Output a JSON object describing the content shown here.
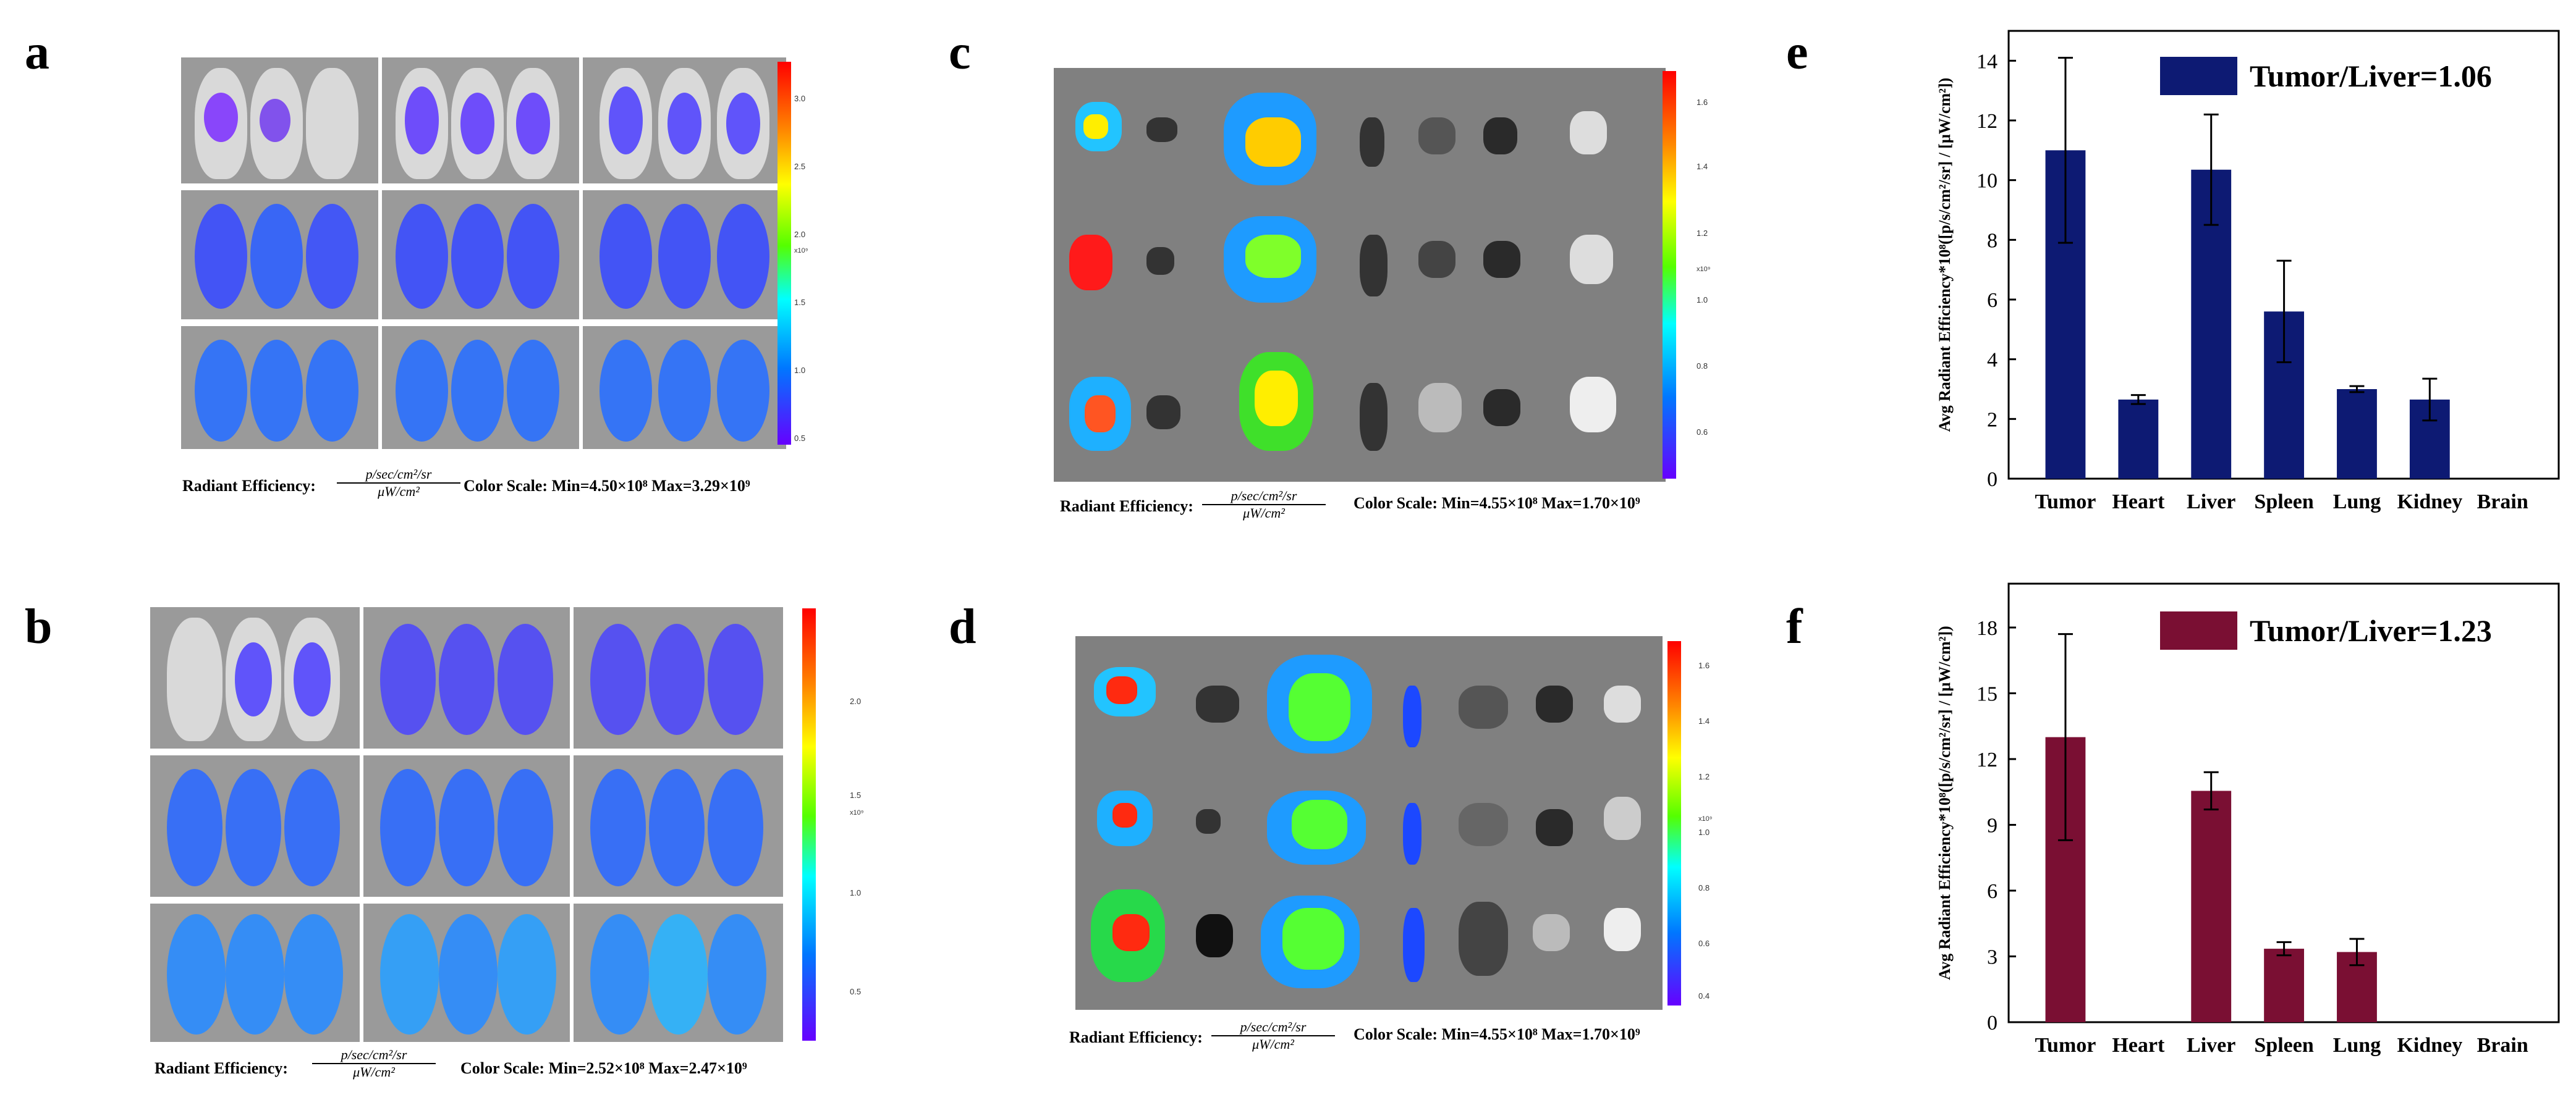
{
  "panel_letters": {
    "a": "a",
    "b": "b",
    "c": "c",
    "d": "d",
    "e": "e",
    "f": "f"
  },
  "panel_a": {
    "colorbar_ticks": [
      "3.0",
      "2.5",
      "2.0",
      "1.5",
      "1.0",
      "0.5"
    ],
    "colorbar_unit": "x10⁹",
    "caption_label": "Radiant Efficiency:",
    "unit_num": "p/sec/cm²/sr",
    "unit_den": "μW/cm²",
    "color_scale": "Color Scale:  Min=4.50×10⁸  Max=3.29×10⁹"
  },
  "panel_b": {
    "colorbar_ticks": [
      "2.0",
      "1.5",
      "1.0",
      "0.5"
    ],
    "colorbar_unit": "x10⁹",
    "caption_label": "Radiant Efficiency:",
    "unit_num": "p/sec/cm²/sr",
    "unit_den": "μW/cm²",
    "color_scale": "Color Scale:  Min=2.52×10⁸  Max=2.47×10⁹"
  },
  "panel_c": {
    "colorbar_ticks": [
      "1.6",
      "1.4",
      "1.2",
      "1.0",
      "0.8",
      "0.6"
    ],
    "colorbar_unit": "x10⁹",
    "caption_label": "Radiant Efficiency:",
    "unit_num": "p/sec/cm²/sr",
    "unit_den": "μW/cm²",
    "color_scale": "Color Scale:  Min=4.55×10⁸  Max=1.70×10⁹"
  },
  "panel_d": {
    "colorbar_ticks": [
      "1.6",
      "1.4",
      "1.2",
      "1.0",
      "0.8",
      "0.6",
      "0.4"
    ],
    "colorbar_unit": "x10⁹",
    "caption_label": "Radiant Efficiency:",
    "unit_num": "p/sec/cm²/sr",
    "unit_den": "μW/cm²",
    "color_scale": "Color Scale:  Min=4.55×10⁸  Max=1.70×10⁹"
  },
  "chart_data": [
    {
      "type": "bar",
      "panel": "e",
      "categories": [
        "Tumor",
        "Heart",
        "Liver",
        "Spleen",
        "Lung",
        "Kidney",
        "Brain"
      ],
      "values": [
        11.0,
        2.65,
        10.35,
        5.6,
        3.0,
        2.65,
        0
      ],
      "errors": [
        3.1,
        0.15,
        1.85,
        1.7,
        0.1,
        0.7,
        0
      ],
      "ylim": [
        0,
        15
      ],
      "yticks": [
        0,
        2,
        4,
        6,
        8,
        10,
        12,
        14
      ],
      "ylabel": "Avg Radiant Efficiency*10⁸([p/s/cm²/sr] / [μW/cm²])",
      "legend": "Tumor/Liver=1.06",
      "color": "#0d1a73"
    },
    {
      "type": "bar",
      "panel": "f",
      "categories": [
        "Tumor",
        "Heart",
        "Liver",
        "Spleen",
        "Lung",
        "Kidney",
        "Brain"
      ],
      "values": [
        13.0,
        0,
        10.55,
        3.35,
        3.2,
        0,
        0
      ],
      "errors": [
        4.7,
        0,
        0.85,
        0.3,
        0.6,
        0,
        0
      ],
      "ylim": [
        0,
        20
      ],
      "yticks": [
        0,
        3,
        6,
        9,
        12,
        15,
        18
      ],
      "ylabel": "Avg Radiant Efficiency*10⁸([p/s/cm²/sr] / [μW/cm²])",
      "legend": "Tumor/Liver=1.23",
      "color": "#7a0f33"
    }
  ]
}
